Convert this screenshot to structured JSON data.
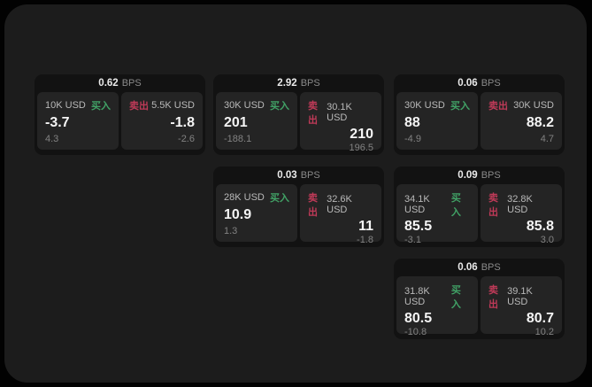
{
  "labels": {
    "bps_unit": "BPS",
    "buy": "买入",
    "sell": "卖出"
  },
  "colors": {
    "frame": "#020202",
    "canvas": "#1c1c1c",
    "card": "#121212",
    "pane": "#242424",
    "buy_green": "#41a266",
    "sell_red": "#bf3a58",
    "text_primary": "#f5f5f5",
    "text_secondary": "#b9b9b9",
    "text_muted": "#828282"
  },
  "cards": [
    {
      "bps": "0.62",
      "buy": {
        "amount": "10K USD",
        "big": "-3.7",
        "small": "4.3"
      },
      "sell": {
        "amount": "5.5K USD",
        "big": "-1.8",
        "small": "-2.6"
      }
    },
    {
      "bps": "2.92",
      "buy": {
        "amount": "30K USD",
        "big": "201",
        "small": "-188.1"
      },
      "sell": {
        "amount": "30.1K USD",
        "big": "210",
        "small": "196.5"
      }
    },
    {
      "bps": "0.06",
      "buy": {
        "amount": "30K USD",
        "big": "88",
        "small": "-4.9"
      },
      "sell": {
        "amount": "30K USD",
        "big": "88.2",
        "small": "4.7"
      }
    },
    {
      "bps": "0.03",
      "buy": {
        "amount": "28K USD",
        "big": "10.9",
        "small": "1.3"
      },
      "sell": {
        "amount": "32.6K USD",
        "big": "11",
        "small": "-1.8"
      }
    },
    {
      "bps": "0.09",
      "buy": {
        "amount": "34.1K USD",
        "big": "85.5",
        "small": "-3.1"
      },
      "sell": {
        "amount": "32.8K USD",
        "big": "85.8",
        "small": "3.0"
      }
    },
    {
      "bps": "0.06",
      "buy": {
        "amount": "31.8K USD",
        "big": "80.5",
        "small": "-10.8"
      },
      "sell": {
        "amount": "39.1K USD",
        "big": "80.7",
        "small": "10.2"
      }
    }
  ]
}
